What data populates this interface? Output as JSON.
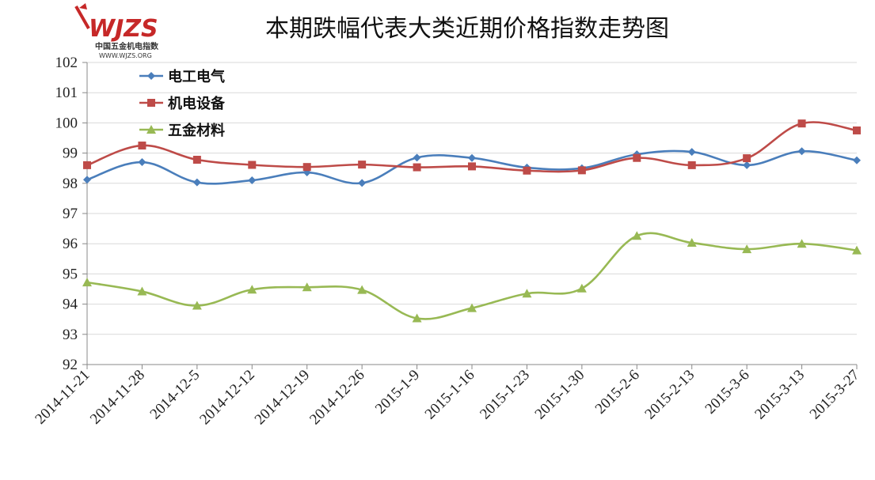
{
  "logo": {
    "brand": "WJZS",
    "subtitle": "中国五金机电指数",
    "url": "WWW.WJZS.ORG"
  },
  "chart_data": {
    "type": "line",
    "title": "本期跌幅代表大类近期价格指数走势图",
    "xlabel": "",
    "ylabel": "",
    "ylim": [
      92,
      102
    ],
    "yticks": [
      "92",
      "93",
      "94",
      "95",
      "96",
      "97",
      "98",
      "99",
      "100",
      "101",
      "102"
    ],
    "grid": "horizontal",
    "legend_position": "top-left",
    "categories": [
      "2014-11-21",
      "2014-11-28",
      "2014-12-5",
      "2014-12-12",
      "2014-12-19",
      "2014-12-26",
      "2015-1-9",
      "2015-1-16",
      "2015-1-23",
      "2015-1-30",
      "2015-2-6",
      "2015-2-13",
      "2015-3-6",
      "2015-3-13",
      "2015-3-27"
    ],
    "series": [
      {
        "name": "电工电气",
        "color": "#4a7ebb",
        "marker": "diamond",
        "values": [
          98.12,
          98.7,
          98.03,
          98.1,
          98.36,
          98.01,
          98.85,
          98.84,
          98.52,
          98.5,
          98.96,
          99.04,
          98.6,
          99.06,
          98.76
        ]
      },
      {
        "name": "机电设备",
        "color": "#be4b48",
        "marker": "square",
        "values": [
          98.6,
          99.25,
          98.78,
          98.61,
          98.54,
          98.62,
          98.53,
          98.56,
          98.42,
          98.43,
          98.84,
          98.6,
          98.83,
          99.98,
          99.75
        ]
      },
      {
        "name": "五金材料",
        "color": "#98b954",
        "marker": "triangle",
        "values": [
          94.72,
          94.42,
          93.95,
          94.48,
          94.56,
          94.47,
          93.53,
          93.87,
          94.35,
          94.52,
          96.26,
          96.03,
          95.82,
          96.0,
          95.78
        ]
      }
    ]
  }
}
